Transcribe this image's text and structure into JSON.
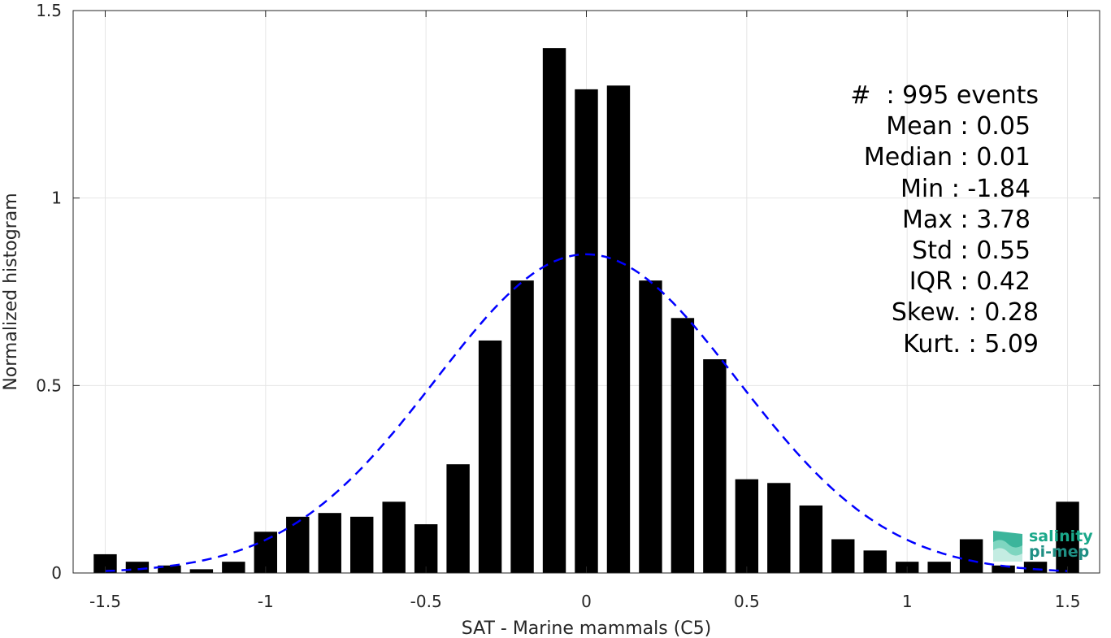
{
  "chart_data": {
    "type": "bar",
    "title": "",
    "xlabel": "SAT - Marine mammals (C5)",
    "ylabel": "Normalized histogram",
    "xlim": [
      -1.6,
      1.6
    ],
    "ylim": [
      0,
      1.5
    ],
    "xticks": [
      -1.5,
      -1,
      -0.5,
      0,
      0.5,
      1,
      1.5
    ],
    "xtick_labels": [
      "-1.5",
      "-1",
      "-0.5",
      "0",
      "0.5",
      "1",
      "1.5"
    ],
    "yticks": [
      0,
      0.5,
      1,
      1.5
    ],
    "ytick_labels": [
      "0",
      "0.5",
      "1",
      "1.5"
    ],
    "grid": true,
    "bar_color": "#000000",
    "x": [
      -1.5,
      -1.4,
      -1.3,
      -1.2,
      -1.1,
      -1.0,
      -0.9,
      -0.8,
      -0.7,
      -0.6,
      -0.5,
      -0.4,
      -0.3,
      -0.2,
      -0.1,
      0.0,
      0.1,
      0.2,
      0.3,
      0.4,
      0.5,
      0.6,
      0.7,
      0.8,
      0.9,
      1.0,
      1.1,
      1.2,
      1.3,
      1.4,
      1.5
    ],
    "values": [
      0.05,
      0.03,
      0.02,
      0.01,
      0.03,
      0.11,
      0.15,
      0.16,
      0.15,
      0.19,
      0.13,
      0.29,
      0.62,
      0.78,
      1.4,
      1.29,
      1.3,
      0.78,
      0.68,
      0.57,
      0.25,
      0.24,
      0.18,
      0.09,
      0.06,
      0.03,
      0.03,
      0.09,
      0.02,
      0.03,
      0.19
    ],
    "fit_curve": {
      "style": "dashed",
      "color": "#0000ff",
      "mean": 0.0,
      "std": 0.47,
      "peak": 0.85
    }
  },
  "stats": [
    {
      "label": "#  ",
      "value": ": 995 events"
    },
    {
      "label": "Mean ",
      "value": ": 0.05"
    },
    {
      "label": "Median ",
      "value": ": 0.01"
    },
    {
      "label": "Min ",
      "value": ": -1.84"
    },
    {
      "label": "Max ",
      "value": ": 3.78"
    },
    {
      "label": "Std ",
      "value": ": 0.55"
    },
    {
      "label": "IQR ",
      "value": ": 0.42"
    },
    {
      "label": "Skew. ",
      "value": ": 0.28"
    },
    {
      "label": "Kurt. ",
      "value": ": 5.09"
    }
  ],
  "logo": {
    "line1": "salinity",
    "line2": "pi-mep",
    "color1": "#1aa88a",
    "color2": "#1f8f84"
  }
}
